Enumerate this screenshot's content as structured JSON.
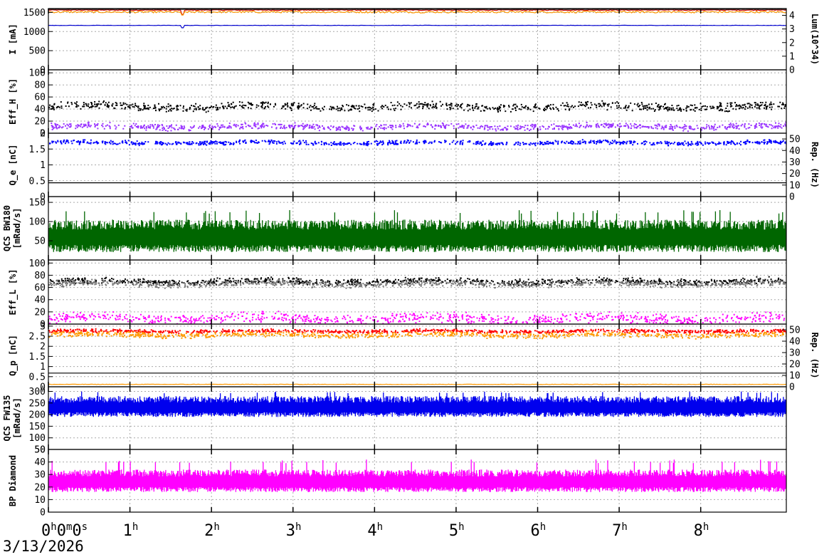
{
  "date": "3/13/2026",
  "time_axis": {
    "range_hours": [
      0,
      9.05
    ],
    "ticks": [
      {
        "h": 0,
        "label": "0",
        "tail": "h0m0s",
        "sup": [
          1,
          3
        ]
      },
      {
        "h": 1,
        "label": "1",
        "tail": "h",
        "sup": [
          1
        ]
      },
      {
        "h": 2,
        "label": "2",
        "tail": "h",
        "sup": [
          1
        ]
      },
      {
        "h": 3,
        "label": "3",
        "tail": "h",
        "sup": [
          1
        ]
      },
      {
        "h": 4,
        "label": "4",
        "tail": "h",
        "sup": [
          1
        ]
      },
      {
        "h": 5,
        "label": "5",
        "tail": "h",
        "sup": [
          1
        ]
      },
      {
        "h": 6,
        "label": "6",
        "tail": "h",
        "sup": [
          1
        ]
      },
      {
        "h": 7,
        "label": "7",
        "tail": "h",
        "sup": [
          1
        ]
      },
      {
        "h": 8,
        "label": "8",
        "tail": "h",
        "sup": [
          1
        ]
      }
    ]
  },
  "chart_data": [
    {
      "type": "line",
      "ylabel": "I [mA]",
      "ylim": [
        0,
        1600
      ],
      "yticks": [
        0,
        500,
        1000,
        1500
      ],
      "y2label": "Lum(10^34)",
      "y2lim": [
        0,
        4.5
      ],
      "y2ticks": [
        0,
        1,
        2,
        3,
        4
      ],
      "grid": true,
      "series": [
        {
          "color": "#cc0000",
          "style": "line",
          "axis": "left",
          "base": 1560,
          "jitter": 10,
          "dip_at": 1.65,
          "dip": 120
        },
        {
          "color": "#ff9900",
          "style": "line",
          "axis": "left",
          "base": 1510,
          "jitter": 25,
          "dip_at": 1.65,
          "dip": 100
        },
        {
          "color": "#0000cc",
          "style": "line",
          "axis": "left",
          "base": 1160,
          "jitter": 4,
          "dip_at": 1.65,
          "dip": 60
        },
        {
          "color": "#222222",
          "style": "line",
          "axis": "left",
          "base": 1580,
          "jitter": 3,
          "dip_at": 1.65,
          "dip": 0
        }
      ]
    },
    {
      "type": "scatter",
      "ylabel": "Eff_H [%]",
      "ylim": [
        0,
        105
      ],
      "yticks": [
        0,
        20,
        40,
        60,
        80,
        100
      ],
      "grid": true,
      "series": [
        {
          "color": "#000000",
          "style": "dots",
          "base": 45,
          "jitter": 4
        },
        {
          "color": "#9933ff",
          "style": "dots",
          "base": 12,
          "jitter": 3
        }
      ]
    },
    {
      "type": "scatter",
      "ylabel": "Q_e [nC]",
      "ylim": [
        0,
        2
      ],
      "yticks": [
        0,
        0.5,
        1,
        1.5,
        2
      ],
      "ytick_labels": [
        "0",
        "0.5",
        "1",
        "1.5",
        "2"
      ],
      "y2label": "Rep. (Hz)",
      "y2lim": [
        0,
        55
      ],
      "y2ticks": [
        0,
        10,
        20,
        30,
        40,
        50
      ],
      "grid": true,
      "series": [
        {
          "color": "#0000ff",
          "style": "dots",
          "base": 1.72,
          "jitter": 0.04
        },
        {
          "color": "#000000",
          "style": "line",
          "axis": "right",
          "base": 12,
          "jitter": 0
        }
      ]
    },
    {
      "type": "area",
      "ylabel": "QCS BW180 [mRad/s]",
      "ylim": [
        0,
        165
      ],
      "yticks": [
        50,
        100,
        150
      ],
      "grid": true,
      "series": [
        {
          "color": "#006600",
          "style": "band",
          "low": 30,
          "high": 105,
          "spike": 130
        }
      ]
    },
    {
      "type": "scatter",
      "ylabel": "Eff_L [%]",
      "ylim": [
        0,
        105
      ],
      "yticks": [
        0,
        20,
        40,
        60,
        80,
        100
      ],
      "grid": true,
      "series": [
        {
          "color": "#000000",
          "style": "dots",
          "base": 71,
          "jitter": 3
        },
        {
          "color": "#777777",
          "style": "dots",
          "base": 67,
          "jitter": 3
        },
        {
          "color": "#ff00ff",
          "style": "dots",
          "base": 10,
          "jitter": 5
        }
      ]
    },
    {
      "type": "scatter",
      "ylabel": "Q_p [nC]",
      "ylim": [
        0,
        3.1
      ],
      "yticks": [
        0,
        0.5,
        1,
        1.5,
        2,
        2.5,
        3
      ],
      "ytick_labels": [
        "0",
        "0.5",
        "1",
        "1.5",
        "2",
        "2.5",
        "3"
      ],
      "y2label": "Rep. (Hz)",
      "y2lim": [
        0,
        55
      ],
      "y2ticks": [
        0,
        10,
        20,
        30,
        40,
        50
      ],
      "grid": true,
      "series": [
        {
          "color": "#ff0000",
          "style": "dots",
          "base": 2.78,
          "jitter": 0.05
        },
        {
          "color": "#ff9900",
          "style": "dots",
          "base": 2.6,
          "jitter": 0.08
        },
        {
          "color": "#ff9900",
          "style": "line",
          "axis": "left",
          "base": 0.12,
          "jitter": 0.01
        },
        {
          "color": "#000000",
          "style": "line",
          "axis": "right",
          "base": 12,
          "jitter": 0
        }
      ]
    },
    {
      "type": "area",
      "ylabel": "QCS FW135 [mRad/s]",
      "ylim": [
        50,
        320
      ],
      "yticks": [
        50,
        100,
        150,
        200,
        250,
        300
      ],
      "grid": true,
      "series": [
        {
          "color": "#0000ee",
          "style": "band",
          "low": 200,
          "high": 280,
          "spike": 300
        }
      ]
    },
    {
      "type": "area",
      "ylabel": "BP Diamond",
      "ylim": [
        0,
        50
      ],
      "yticks": [
        0,
        10,
        20,
        30,
        40,
        50
      ],
      "grid": true,
      "series": [
        {
          "color": "#ff00ff",
          "style": "band",
          "low": 18,
          "high": 34,
          "spike": 42
        }
      ]
    }
  ]
}
